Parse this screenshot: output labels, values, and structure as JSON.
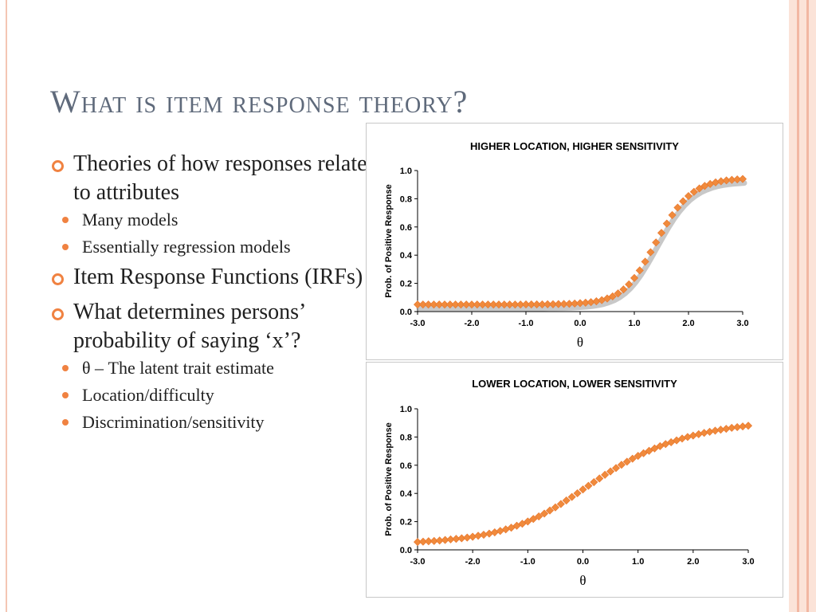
{
  "slide": {
    "title": "What is item response theory?",
    "bullets": [
      {
        "text": "Theories of how responses relate to attributes",
        "sub": [
          "Many models",
          "Essentially regression models"
        ]
      },
      {
        "text": "Item Response Functions (IRFs)",
        "sub": []
      },
      {
        "text": "What determines persons’ probability of saying ‘x’?",
        "sub": [
          "θ – The latent trait estimate",
          "Location/difficulty",
          "Discrimination/sensitivity"
        ]
      }
    ]
  },
  "colors": {
    "accent": "#f08241",
    "title": "#5f6a7b",
    "marker": "#f08a3c",
    "frame": "#f2b7a2"
  },
  "chart_data": [
    {
      "type": "scatter",
      "title": "HIGHER LOCATION, HIGHER SENSITIVITY",
      "xlabel": "θ",
      "ylabel": "Prob. of Positive Response",
      "xlim": [
        -3.0,
        3.0
      ],
      "ylim": [
        0.0,
        1.0
      ],
      "xticks": [
        "-3.0",
        "-2.0",
        "-1.0",
        "0.0",
        "1.0",
        "2.0",
        "3.0"
      ],
      "yticks": [
        "0.0",
        "0.2",
        "0.4",
        "0.6",
        "0.8",
        "1.0"
      ],
      "grid": false,
      "marker": "diamond",
      "shadow": true,
      "x": [
        -3.0,
        -2.9,
        -2.8,
        -2.7,
        -2.6,
        -2.5,
        -2.4,
        -2.3,
        -2.2,
        -2.1,
        -2.0,
        -1.9,
        -1.8,
        -1.7,
        -1.6,
        -1.5,
        -1.4,
        -1.3,
        -1.2,
        -1.1,
        -1.0,
        -0.9,
        -0.8,
        -0.7,
        -0.6,
        -0.5,
        -0.4,
        -0.3,
        -0.2,
        -0.1,
        0.0,
        0.1,
        0.2,
        0.3,
        0.4,
        0.5,
        0.6,
        0.7,
        0.8,
        0.9,
        1.0,
        1.1,
        1.2,
        1.3,
        1.4,
        1.5,
        1.6,
        1.7,
        1.8,
        1.9,
        2.0,
        2.1,
        2.2,
        2.3,
        2.4,
        2.5,
        2.6,
        2.7,
        2.8,
        2.9,
        3.0
      ],
      "y": [
        0.05,
        0.05,
        0.05,
        0.05,
        0.05,
        0.05,
        0.05,
        0.05,
        0.05,
        0.05,
        0.05,
        0.05,
        0.05,
        0.05,
        0.05,
        0.05,
        0.05,
        0.05,
        0.05,
        0.05,
        0.051,
        0.051,
        0.051,
        0.051,
        0.052,
        0.052,
        0.053,
        0.054,
        0.055,
        0.057,
        0.06,
        0.063,
        0.067,
        0.073,
        0.081,
        0.093,
        0.108,
        0.129,
        0.157,
        0.193,
        0.238,
        0.292,
        0.354,
        0.421,
        0.49,
        0.558,
        0.624,
        0.684,
        0.737,
        0.782,
        0.819,
        0.849,
        0.873,
        0.891,
        0.905,
        0.916,
        0.924,
        0.93,
        0.934,
        0.937,
        0.94
      ]
    },
    {
      "type": "scatter",
      "title": "LOWER LOCATION, LOWER SENSITIVITY",
      "xlabel": "θ",
      "ylabel": "Prob. of Positive Response",
      "xlim": [
        -3.0,
        3.0
      ],
      "ylim": [
        0.0,
        1.0
      ],
      "xticks": [
        "-3.0",
        "-2.0",
        "-1.0",
        "0.0",
        "1.0",
        "2.0",
        "3.0"
      ],
      "yticks": [
        "0.0",
        "0.2",
        "0.4",
        "0.6",
        "0.8",
        "1.0"
      ],
      "grid": false,
      "marker": "diamond",
      "shadow": false,
      "x": [
        -3.0,
        -2.9,
        -2.8,
        -2.7,
        -2.6,
        -2.5,
        -2.4,
        -2.3,
        -2.2,
        -2.1,
        -2.0,
        -1.9,
        -1.8,
        -1.7,
        -1.6,
        -1.5,
        -1.4,
        -1.3,
        -1.2,
        -1.1,
        -1.0,
        -0.9,
        -0.8,
        -0.7,
        -0.6,
        -0.5,
        -0.4,
        -0.3,
        -0.2,
        -0.1,
        0.0,
        0.1,
        0.2,
        0.3,
        0.4,
        0.5,
        0.6,
        0.7,
        0.8,
        0.9,
        1.0,
        1.1,
        1.2,
        1.3,
        1.4,
        1.5,
        1.6,
        1.7,
        1.8,
        1.9,
        2.0,
        2.1,
        2.2,
        2.3,
        2.4,
        2.5,
        2.6,
        2.7,
        2.8,
        2.9,
        3.0
      ],
      "y": [
        0.056,
        0.058,
        0.061,
        0.063,
        0.066,
        0.07,
        0.074,
        0.078,
        0.082,
        0.087,
        0.093,
        0.1,
        0.107,
        0.115,
        0.124,
        0.134,
        0.145,
        0.157,
        0.171,
        0.185,
        0.201,
        0.219,
        0.237,
        0.257,
        0.279,
        0.301,
        0.325,
        0.35,
        0.375,
        0.401,
        0.428,
        0.454,
        0.48,
        0.506,
        0.532,
        0.556,
        0.58,
        0.603,
        0.625,
        0.646,
        0.666,
        0.685,
        0.702,
        0.719,
        0.735,
        0.75,
        0.763,
        0.776,
        0.789,
        0.8,
        0.81,
        0.82,
        0.829,
        0.837,
        0.845,
        0.852,
        0.858,
        0.865,
        0.87,
        0.875,
        0.88
      ]
    }
  ]
}
